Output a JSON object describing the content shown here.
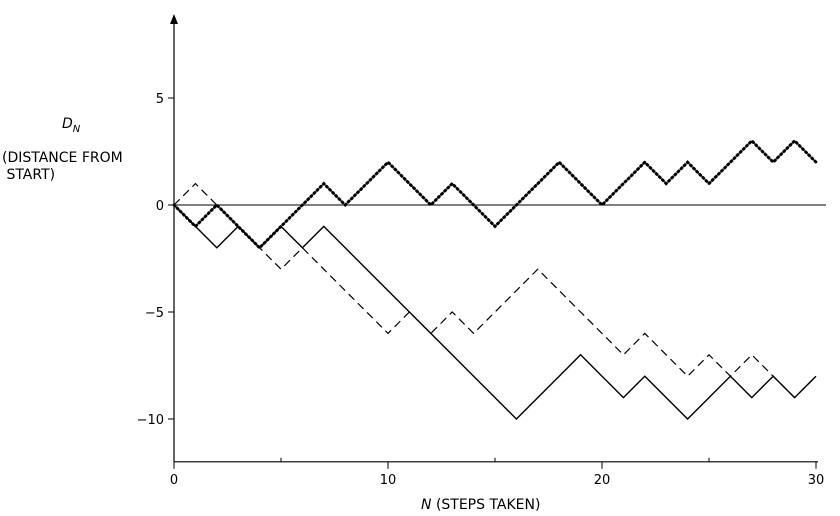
{
  "chart_data": {
    "type": "line",
    "title": "",
    "ylabel": {
      "symbol": "D",
      "subscript": "N",
      "description": "(DISTANCE FROM\n START)"
    },
    "xlabel": {
      "symbol": "N",
      "description": "(STEPS TAKEN)"
    },
    "xlim": [
      0,
      30
    ],
    "ylim": [
      -12,
      9
    ],
    "x_ticks": [
      0,
      10,
      20,
      30
    ],
    "x_minor_ticks": [
      5,
      15,
      25
    ],
    "y_ticks": [
      5,
      0,
      -5,
      -10
    ],
    "y_tick_labels": [
      "5",
      "0",
      "−5",
      "−10"
    ],
    "x_tick_labels": [
      "0",
      "10",
      "20",
      "30"
    ],
    "zero_line": true,
    "grid": false,
    "legend": "none",
    "series": [
      {
        "style": "solid",
        "x": [
          0,
          1,
          2,
          3,
          4,
          5,
          6,
          7,
          8,
          9,
          10,
          11,
          12,
          13,
          14,
          15,
          16,
          17,
          18,
          19,
          20,
          21,
          22,
          23,
          24,
          25,
          26,
          27,
          28,
          29,
          30
        ],
        "y": [
          0,
          -1,
          -2,
          -1,
          -2,
          -1,
          -2,
          -1,
          -2,
          -3,
          -4,
          -5,
          -6,
          -7,
          -8,
          -9,
          -10,
          -9,
          -8,
          -7,
          -8,
          -9,
          -8,
          -9,
          -10,
          -9,
          -8,
          -9,
          -8,
          -9,
          -8
        ]
      },
      {
        "style": "dashed",
        "x": [
          0,
          1,
          2,
          3,
          4,
          5,
          6,
          7,
          8,
          9,
          10,
          11,
          12,
          13,
          14,
          15,
          16,
          17,
          18,
          19,
          20,
          21,
          22,
          23,
          24,
          25,
          26,
          27,
          28,
          29,
          30
        ],
        "y": [
          0,
          1,
          0,
          -1,
          -2,
          -3,
          -2,
          -3,
          -4,
          -5,
          -6,
          -5,
          -6,
          -5,
          -6,
          -5,
          -4,
          -3,
          -4,
          -5,
          -6,
          -7,
          -6,
          -7,
          -8,
          -7,
          -8,
          -7,
          -8,
          -9,
          -8
        ]
      },
      {
        "style": "dotted",
        "x": [
          0,
          1,
          2,
          3,
          4,
          5,
          6,
          7,
          8,
          9,
          10,
          11,
          12,
          13,
          14,
          15,
          16,
          17,
          18,
          19,
          20,
          21,
          22,
          23,
          24,
          25,
          26,
          27,
          28,
          29,
          30
        ],
        "y": [
          0,
          -1,
          0,
          -1,
          -2,
          -1,
          0,
          1,
          0,
          1,
          2,
          1,
          0,
          1,
          0,
          -1,
          0,
          1,
          2,
          1,
          0,
          1,
          2,
          1,
          2,
          1,
          2,
          3,
          2,
          3,
          2
        ]
      }
    ]
  }
}
